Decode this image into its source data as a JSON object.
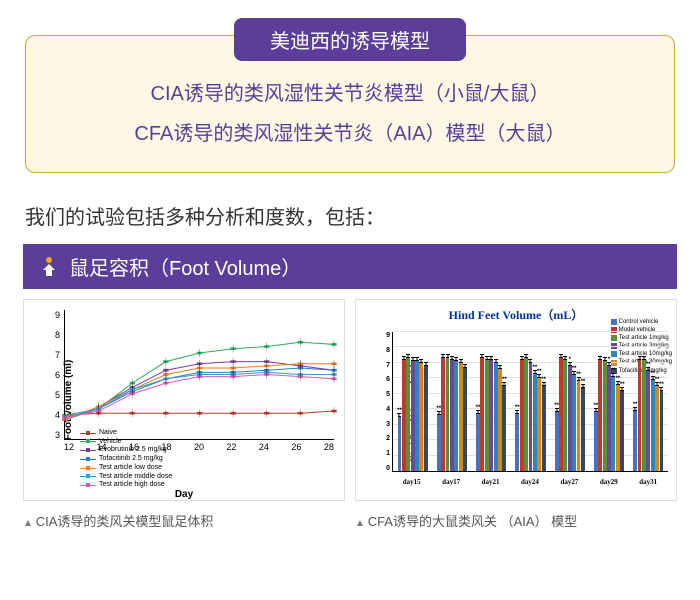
{
  "header": {
    "badge": "美迪西的诱导模型",
    "line1": "CIA诱导的类风湿性关节炎模型（小鼠/大鼠）",
    "line2": "CFA诱导的类风湿性关节炎（AIA）模型（大鼠）",
    "badge_bg": "#5a3e99",
    "box_bg": "#fdf7e3",
    "box_border": "#c9a93f",
    "text_color": "#5a3e99"
  },
  "subtitle": "我们的试验包括多种分析和度数，包括：",
  "section": {
    "title": "鼠足容积（Foot Volume）",
    "bg": "#5a3e99",
    "icon_accent": "#f5a623"
  },
  "line_chart": {
    "type": "line",
    "ylabel": "Foot volume (ml)",
    "xlabel": "Day",
    "ylim": [
      3,
      9
    ],
    "yticks": [
      3,
      4,
      5,
      6,
      7,
      8,
      9
    ],
    "xticks": [
      12,
      14,
      16,
      18,
      20,
      22,
      24,
      26,
      28
    ],
    "series": [
      {
        "name": "Naive",
        "color": "#c0392b",
        "marker": "square",
        "y": [
          4.1,
          4.2,
          4.2,
          4.2,
          4.2,
          4.2,
          4.2,
          4.2,
          4.3
        ]
      },
      {
        "name": "Vehicle",
        "color": "#27ae60",
        "marker": "circle",
        "y": [
          4.1,
          4.4,
          5.6,
          6.6,
          7.0,
          7.2,
          7.3,
          7.5,
          7.4
        ]
      },
      {
        "name": "Evobrutinib 2.5 mg/kg",
        "color": "#7d3c98",
        "marker": "triangle",
        "y": [
          3.9,
          4.5,
          5.4,
          6.2,
          6.5,
          6.6,
          6.6,
          6.4,
          6.2
        ]
      },
      {
        "name": "Tofacitinib 2.5 mg/kg",
        "color": "#2980b9",
        "marker": "x",
        "y": [
          3.9,
          4.4,
          5.2,
          5.8,
          6.1,
          6.1,
          6.2,
          6.3,
          6.2
        ]
      },
      {
        "name": "Test article low dose",
        "color": "#e67e22",
        "marker": "diamond",
        "y": [
          3.9,
          4.5,
          5.3,
          6.0,
          6.3,
          6.3,
          6.4,
          6.5,
          6.5
        ]
      },
      {
        "name": "Test article middle dose",
        "color": "#3498db",
        "marker": "circle",
        "y": [
          4.0,
          4.4,
          5.3,
          5.8,
          6.0,
          6.0,
          6.1,
          6.0,
          6.0
        ]
      },
      {
        "name": "Test article high dose",
        "color": "#e056b8",
        "marker": "triangle",
        "y": [
          4.0,
          4.3,
          5.1,
          5.6,
          5.9,
          5.9,
          6.0,
          5.9,
          5.8
        ]
      }
    ],
    "line_width": 1.5,
    "font_size": 9
  },
  "bar_chart": {
    "type": "bar",
    "title": "Hind Feet Volume（mL）",
    "ylabel": "Hind Feet Volume （mL）",
    "title_color": "#003399",
    "ylim": [
      0,
      9
    ],
    "yticks": [
      0,
      1,
      2,
      3,
      4,
      5,
      6,
      7,
      8,
      9
    ],
    "groups": [
      "day15",
      "day17",
      "day21",
      "day24",
      "day27",
      "day29",
      "day31"
    ],
    "series": [
      {
        "name": "Control vehicle",
        "color": "#4472c4"
      },
      {
        "name": "Model vehicle",
        "color": "#c0392b"
      },
      {
        "name": "Test article 1mg/kg",
        "color": "#5a8f3c"
      },
      {
        "name": "Test article 3mg/kg",
        "color": "#6b4a94"
      },
      {
        "name": "Test article 10mg/kg",
        "color": "#2e86c1"
      },
      {
        "name": "Test article 30mg/kg",
        "color": "#d68910"
      },
      {
        "name": "Tofacitinib 3mg/kg",
        "color": "#34495e"
      }
    ],
    "values": [
      [
        3.5,
        7.2,
        7.3,
        7.1,
        7.1,
        7.0,
        6.8
      ],
      [
        3.6,
        7.3,
        7.3,
        7.2,
        7.1,
        7.0,
        6.7
      ],
      [
        3.7,
        7.3,
        7.2,
        7.2,
        7.0,
        6.6,
        5.5
      ],
      [
        3.7,
        7.2,
        7.3,
        7.0,
        6.3,
        6.0,
        5.5
      ],
      [
        3.8,
        7.3,
        7.2,
        6.8,
        6.2,
        5.8,
        5.4
      ],
      [
        3.8,
        7.2,
        7.1,
        6.8,
        6.1,
        5.6,
        5.2
      ],
      [
        3.9,
        7.2,
        7.2,
        6.5,
        5.9,
        5.5,
        5.2
      ]
    ],
    "sig": [
      [
        "**",
        "",
        "",
        "",
        "",
        "",
        ""
      ],
      [
        "**",
        "",
        "",
        "",
        "",
        "",
        ""
      ],
      [
        "**",
        "",
        "",
        "",
        "",
        "",
        "**"
      ],
      [
        "**",
        "",
        "",
        "",
        "**",
        "**",
        "**"
      ],
      [
        "**",
        "",
        "",
        "*",
        "**",
        "**",
        "**"
      ],
      [
        "**",
        "",
        "",
        "*",
        "**",
        "**",
        "**"
      ],
      [
        "**",
        "",
        "",
        "**",
        "**",
        "**",
        "**"
      ]
    ],
    "bar_border": "#000",
    "font_size": 8
  },
  "captions": {
    "left": "CIA诱导的类风关模型鼠足体积",
    "right": "CFA诱导的大鼠类风关 （AIA） 模型"
  }
}
